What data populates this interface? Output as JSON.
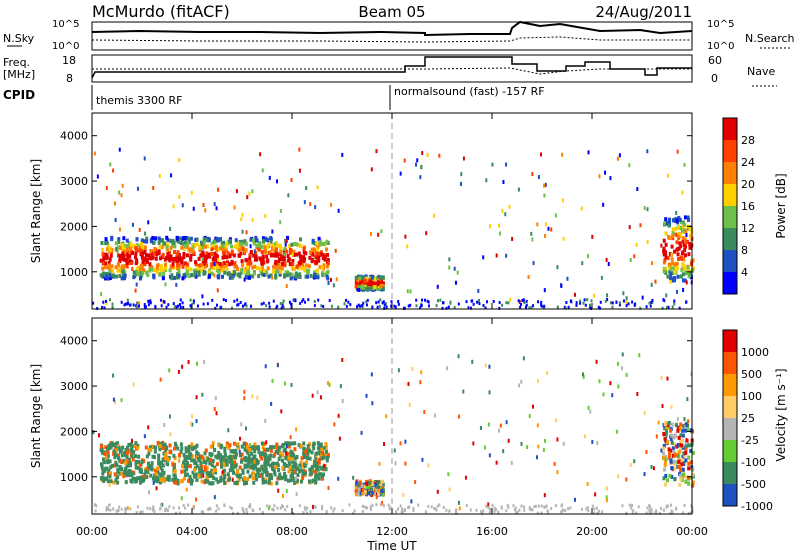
{
  "header": {
    "station": "McMurdo (fitACF)",
    "beam": "Beam 05",
    "date": "24/Aug/2011"
  },
  "status": {
    "left_top": "N.Sky",
    "left_mid_1": "Freq.",
    "left_mid_2": "[MHz]",
    "left_bot": "CPID",
    "right_top": "N.Search",
    "right_mid": "Nave",
    "noise_ticks_left": [
      "10^5",
      "10^0"
    ],
    "noise_ticks_right": [
      "10^5",
      "10^0"
    ],
    "freq_ticks": [
      "18",
      "8"
    ],
    "nave_ticks": [
      "60",
      "0"
    ],
    "cpid_1": "themis 3300 RF",
    "cpid_2": "normalsound (fast) -157 RF"
  },
  "colors": {
    "power": [
      "#0000ff",
      "#1f4fc0",
      "#3a8a5e",
      "#6cc04a",
      "#ffd000",
      "#ff8000",
      "#ff4000",
      "#e00000"
    ],
    "velocity": [
      "#e00000",
      "#ff5500",
      "#ff9900",
      "#ffcc66",
      "#b4b4b4",
      "#66cc33",
      "#3a8a5e",
      "#1f4fc0"
    ]
  },
  "chart_data": [
    {
      "type": "heatmap",
      "name": "power",
      "ylabel": "Slant Range [km]",
      "ylim": [
        180,
        4500
      ],
      "yticks": [
        "1000",
        "2000",
        "3000",
        "4000"
      ],
      "colorbar_label": "Power [dB]",
      "colorbar_ticks": [
        "4",
        "8",
        "12",
        "16",
        "20",
        "24",
        "28"
      ]
    },
    {
      "type": "heatmap",
      "name": "velocity",
      "ylabel": "Slant Range [km]",
      "ylim": [
        180,
        4500
      ],
      "yticks": [
        "1000",
        "2000",
        "3000",
        "4000"
      ],
      "colorbar_label": "Velocity [m s⁻¹]",
      "colorbar_ticks": [
        "1000",
        "500",
        "100",
        "25",
        "-25",
        "-100",
        "-500",
        "-1000"
      ]
    }
  ],
  "x_axis": {
    "label": "Time UT",
    "ticks": [
      "00:00",
      "04:00",
      "08:00",
      "12:00",
      "16:00",
      "20:00",
      "00:00"
    ],
    "xlim_hours": [
      0,
      24
    ],
    "mode_change_hour": 12.0
  },
  "regions": {
    "hours_range_km": [
      [
        0.3,
        9.4,
        850,
        1750
      ],
      [
        10.5,
        11.6,
        600,
        900
      ],
      [
        22.8,
        24,
        800,
        2200
      ]
    ]
  }
}
